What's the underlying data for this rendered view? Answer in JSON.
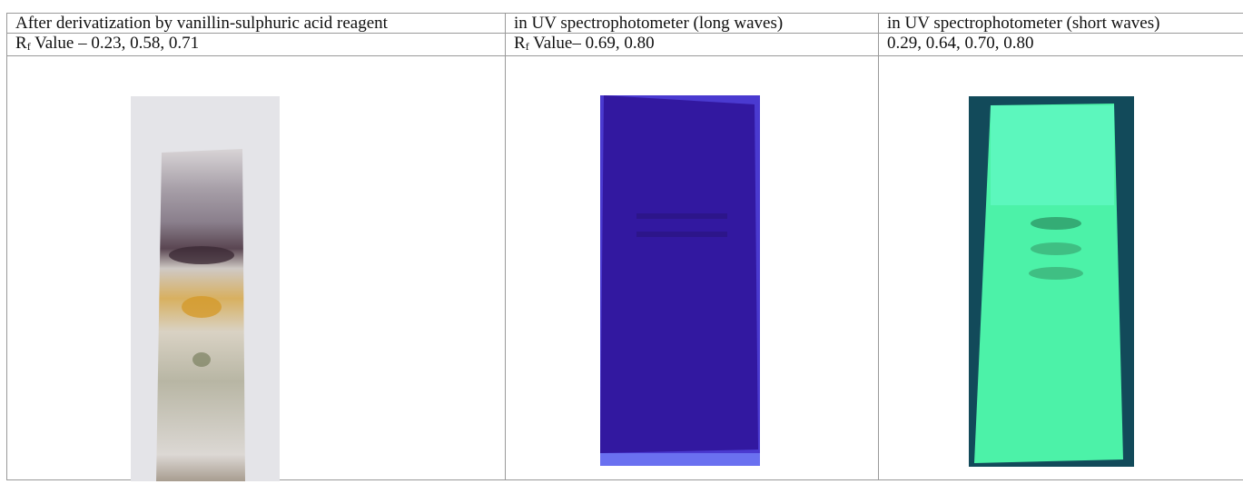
{
  "table": {
    "rows": [
      [
        "After derivatization by vanillin-sulphuric acid reagent",
        "in UV spectrophotometer (long waves)",
        "in UV spectrophotometer (short waves)"
      ],
      [
        {
          "symbol": "R",
          "subscript": "f",
          "text": " Value – 0.23, 0.58, 0.71"
        },
        {
          "symbol": "R",
          "subscript": "f",
          "text": " Value– 0.69, 0.80"
        },
        "0.29, 0.64, 0.70, 0.80"
      ]
    ]
  }
}
